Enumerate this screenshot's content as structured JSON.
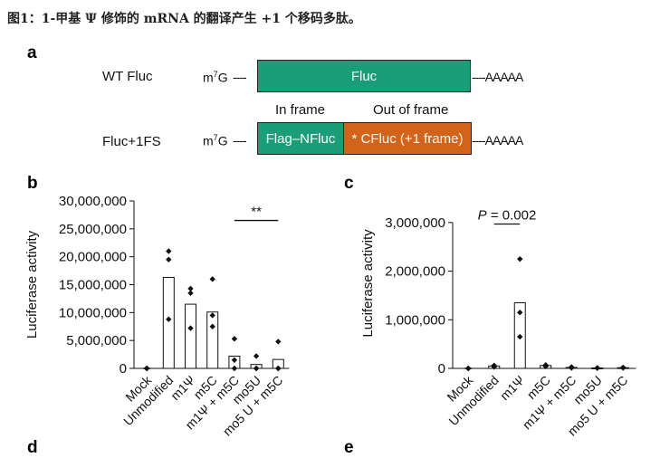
{
  "caption": "图1：1-甲基 Ψ 修饰的 mRNA 的翻译产生 +1 个移码多肽。",
  "panels": {
    "a": "a",
    "b": "b",
    "c": "c",
    "d": "d",
    "e": "e"
  },
  "panel_a": {
    "constructs": [
      {
        "label": "WT Fluc",
        "cap_base": "m",
        "cap_sup": "7",
        "cap_end": "G",
        "linker_5": "----",
        "segments": [
          {
            "text": "Fluc",
            "color": "#1a9e78"
          }
        ],
        "tail": "----AAAAA"
      },
      {
        "label": "Fluc+1FS",
        "cap_base": "m",
        "cap_sup": "7",
        "cap_end": "G",
        "linker_5": "----",
        "segments": [
          {
            "text": "Flag–NFluc",
            "color": "#1a9e78"
          },
          {
            "text": "* CFluc (+1 frame)",
            "color": "#d4631a"
          }
        ],
        "tail": "----AAAAA"
      }
    ],
    "frame_labels": {
      "in": "In frame",
      "out": "Out of frame"
    }
  },
  "chart_data": [
    {
      "type": "bar",
      "panel": "b",
      "ylabel": "Luciferase activity",
      "ylim": [
        0,
        30000000
      ],
      "yticks": [
        0,
        5000000,
        10000000,
        15000000,
        20000000,
        25000000,
        30000000
      ],
      "ytick_labels": [
        "0",
        "5,000,000",
        "10,000,000",
        "15,000,000",
        "20,000,000",
        "25,000,000",
        "30,000,000"
      ],
      "categories": [
        "Mock",
        "Unmodified",
        "m1Ψ",
        "m5C",
        "m1Ψ + m5C",
        "mo5U",
        "mo5 U + m5C"
      ],
      "values": [
        0,
        16300000,
        11500000,
        10100000,
        2200000,
        700000,
        1600000
      ],
      "points": [
        [
          0,
          0,
          0
        ],
        [
          21000000,
          19500000,
          8800000
        ],
        [
          14300000,
          13500000,
          7200000
        ],
        [
          16000000,
          9500000,
          7500000
        ],
        [
          5300000,
          1500000,
          0
        ],
        [
          2200000,
          0,
          0
        ],
        [
          4800000,
          0,
          0
        ]
      ],
      "significance": {
        "label": "**",
        "from": 4,
        "to": 6,
        "y": 26500000
      },
      "legend": "none",
      "grid": false
    },
    {
      "type": "bar",
      "panel": "c",
      "ylabel": "Luciferase activity",
      "ylim": [
        0,
        3500000
      ],
      "yticks": [
        0,
        1000000,
        2000000,
        3000000
      ],
      "ytick_labels": [
        "0",
        "1,000,000",
        "2,000,000",
        "3,000,000"
      ],
      "categories": [
        "Mock",
        "Unmodified",
        "m1Ψ",
        "m5C",
        "m1Ψ + m5C",
        "mo5U",
        "mo5 U + m5C"
      ],
      "values": [
        0,
        50000,
        1350000,
        60000,
        20000,
        10000,
        15000
      ],
      "points": [
        [
          0,
          0,
          0
        ],
        [
          60000,
          40000,
          30000
        ],
        [
          2250000,
          1150000,
          650000
        ],
        [
          70000,
          50000,
          40000
        ],
        [
          30000,
          20000,
          10000
        ],
        [
          10000,
          8000,
          5000
        ],
        [
          20000,
          15000,
          10000
        ]
      ],
      "significance": {
        "label_italic": "P",
        "label_rest": " = 0.002",
        "from": 1,
        "to": 2,
        "y": 2970000
      },
      "legend": "none",
      "grid": false
    }
  ]
}
